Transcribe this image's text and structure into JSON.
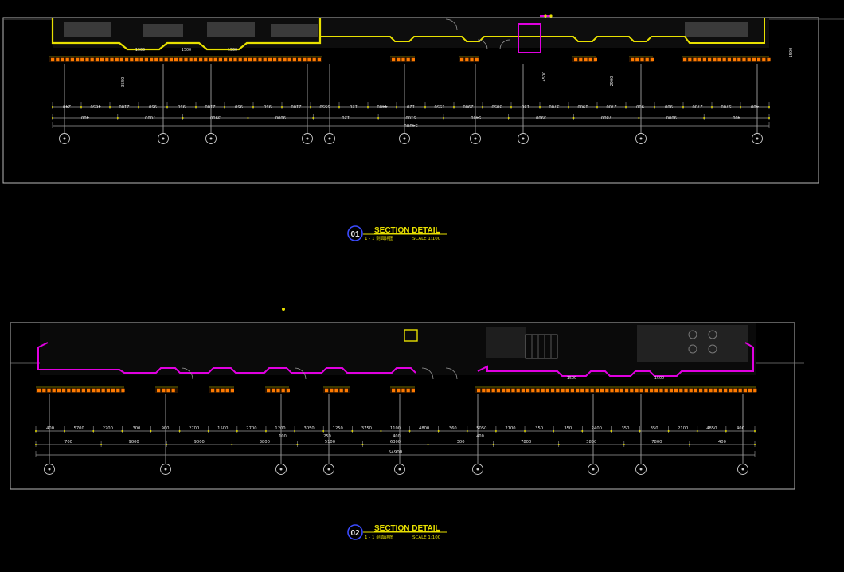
{
  "palette": {
    "background": "#000000",
    "frame": "#b8b8b8",
    "wall": "#8c8c8c",
    "furniture": "#444444",
    "yellow": "#e8e000",
    "orange": "#ff7a00",
    "magenta": "#e000e0",
    "white": "#e6e6e6",
    "grey": "#9a9a9a",
    "blue": "#3c4cff"
  },
  "sheets": [
    {
      "id": "01",
      "accent": "#e8e000",
      "title": "SECTION DETAIL",
      "subtitle": "1 - 1 剖面详图",
      "scale": "SCALE 1:100",
      "dim_row1": [
        "240",
        "4650",
        "2100",
        "950",
        "950",
        "2100",
        "950",
        "950",
        "2100",
        "5550",
        "120",
        "4400",
        "120",
        "1550",
        "2900",
        "3050",
        "130",
        "3700",
        "1900",
        "2700",
        "900",
        "900",
        "2700",
        "5700",
        "400"
      ],
      "dim_row2": [
        "400",
        "7000",
        "3900",
        "9000",
        "120",
        "5100",
        "5400",
        "3900",
        "7800",
        "9000",
        "400"
      ],
      "dim_total": "54900",
      "labels": [
        "1500",
        "1500",
        "1500"
      ],
      "side_text": [
        "3550",
        "4500",
        "2900",
        "1500"
      ]
    },
    {
      "id": "02",
      "accent": "#e000e0",
      "title": "SECTION DETAIL",
      "subtitle": "1 - 1 剖面详图",
      "scale": "SCALE 1:100",
      "dim_row1": [
        "400",
        "5700",
        "2700",
        "300",
        "900",
        "2700",
        "1500",
        "2700",
        "1200",
        "3050",
        "1250",
        "3750",
        "1100",
        "4800",
        "360",
        "5050",
        "2100",
        "350",
        "350",
        "2400",
        "350",
        "350",
        "2100",
        "4850",
        "400"
      ],
      "dim_row1_sub": [
        "100",
        "250",
        "400",
        "400"
      ],
      "dim_row2": [
        "700",
        "9000",
        "9000",
        "3800",
        "5100",
        "6300",
        "300",
        "7800",
        "3800",
        "7800",
        "400"
      ],
      "dim_total": "54900",
      "labels": [
        "1500",
        "1500"
      ]
    }
  ]
}
